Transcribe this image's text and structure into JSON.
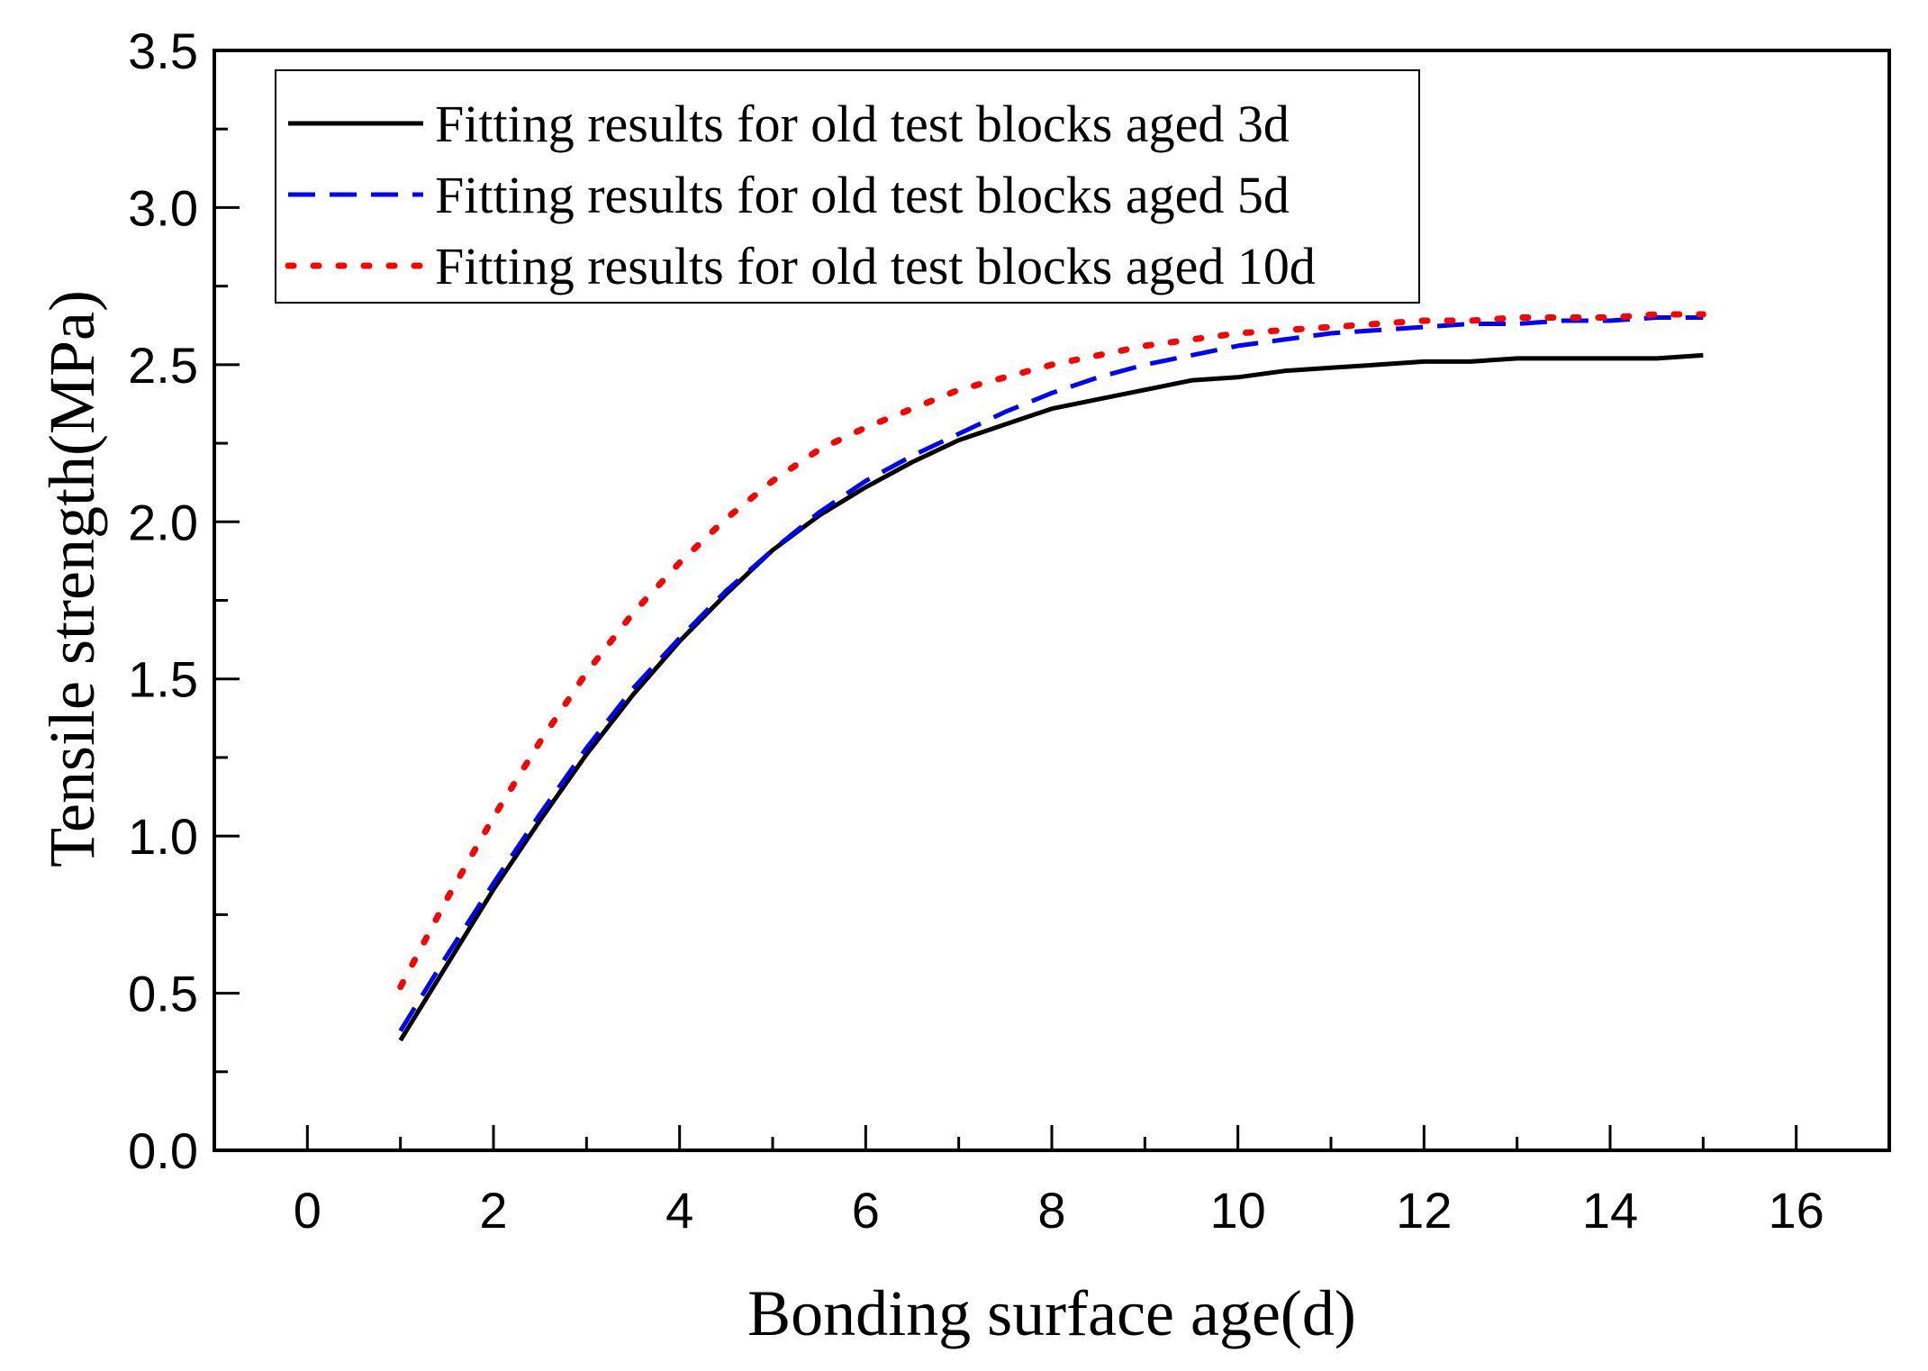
{
  "chart_data": {
    "type": "line",
    "xlabel": "Bonding surface age(d)",
    "ylabel": "Tensile strength(MPa)",
    "xlim": [
      -1,
      17
    ],
    "ylim": [
      0,
      3.5
    ],
    "x_ticks": [
      "0",
      "2",
      "4",
      "6",
      "8",
      "10",
      "12",
      "14",
      "16"
    ],
    "y_ticks": [
      "0.0",
      "0.5",
      "1.0",
      "1.5",
      "2.0",
      "2.5",
      "3.0",
      "3.5"
    ],
    "grid": false,
    "legend_position": "top-left",
    "x": [
      1,
      1.5,
      2,
      2.5,
      3,
      3.5,
      4,
      4.5,
      5,
      5.5,
      6,
      6.5,
      7,
      7.5,
      8,
      8.5,
      9,
      9.5,
      10,
      10.5,
      11,
      11.5,
      12,
      12.5,
      13,
      13.5,
      14,
      14.5,
      15
    ],
    "series": [
      {
        "name": "Fitting results for old test blocks aged 3d",
        "color": "#000000",
        "style": "solid",
        "values": [
          0.35,
          0.59,
          0.83,
          1.05,
          1.26,
          1.45,
          1.62,
          1.77,
          1.91,
          2.02,
          2.11,
          2.19,
          2.26,
          2.31,
          2.36,
          2.39,
          2.42,
          2.45,
          2.46,
          2.48,
          2.49,
          2.5,
          2.51,
          2.51,
          2.52,
          2.52,
          2.52,
          2.52,
          2.53
        ]
      },
      {
        "name": "Fitting results for old test blocks aged 5d",
        "color": "#0000ff",
        "style": "dashed",
        "values": [
          0.38,
          0.62,
          0.85,
          1.07,
          1.28,
          1.47,
          1.63,
          1.78,
          1.91,
          2.03,
          2.13,
          2.21,
          2.28,
          2.35,
          2.41,
          2.46,
          2.5,
          2.53,
          2.56,
          2.58,
          2.6,
          2.61,
          2.62,
          2.63,
          2.63,
          2.64,
          2.64,
          2.65,
          2.65
        ]
      },
      {
        "name": "Fitting results for old test blocks aged 10d",
        "color": "#ff0000",
        "style": "dotted",
        "values": [
          0.52,
          0.8,
          1.06,
          1.3,
          1.52,
          1.71,
          1.87,
          2.01,
          2.13,
          2.23,
          2.3,
          2.36,
          2.42,
          2.46,
          2.5,
          2.53,
          2.56,
          2.58,
          2.6,
          2.61,
          2.62,
          2.63,
          2.64,
          2.64,
          2.65,
          2.65,
          2.65,
          2.66,
          2.66
        ]
      }
    ]
  }
}
